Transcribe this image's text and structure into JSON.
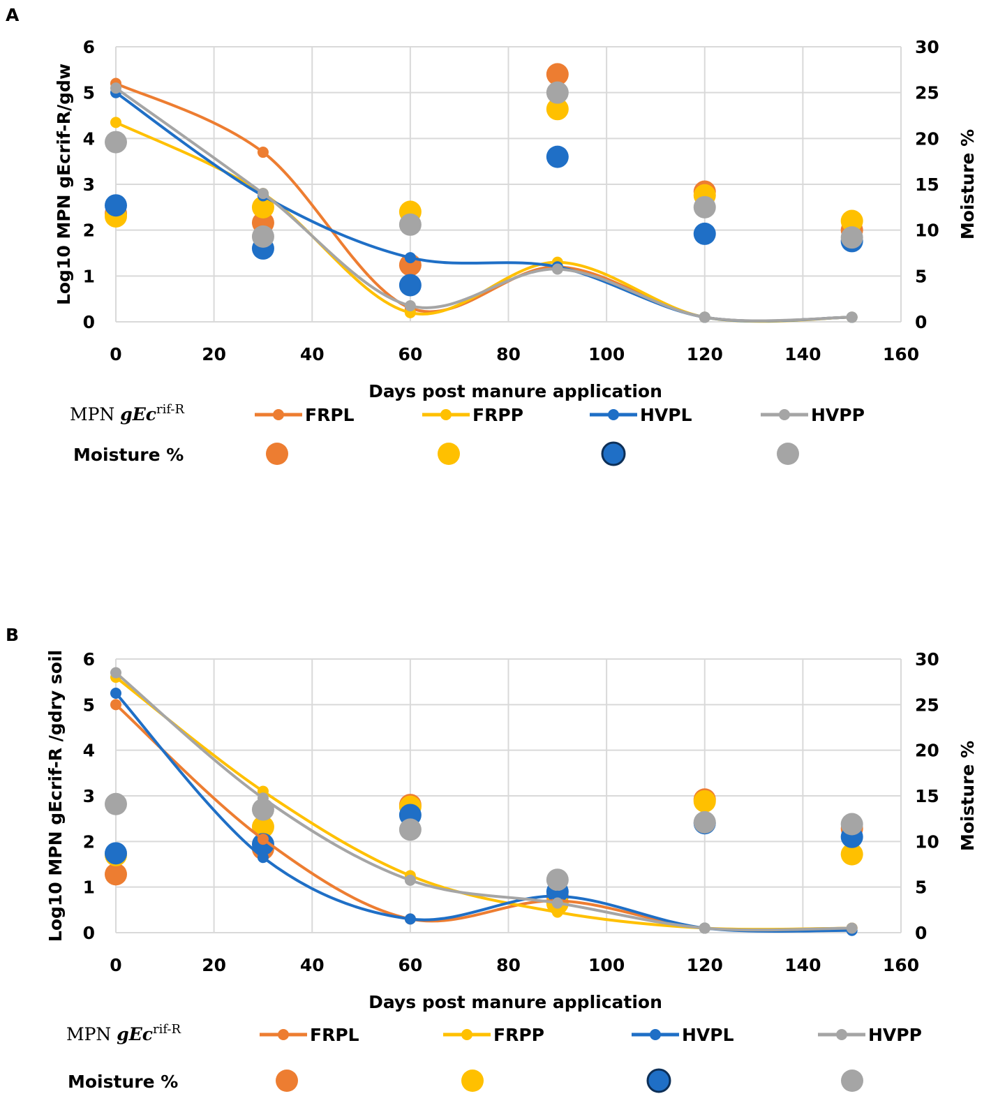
{
  "chart_data": [
    {
      "panel": "A",
      "type": "line",
      "x_label": "Days post manure application",
      "y_label": "Log10 MPN gEcrif-R/gdw",
      "y2_label": "Moisture %",
      "xlim": [
        0,
        160
      ],
      "x_ticks": [
        0,
        20,
        40,
        60,
        80,
        100,
        120,
        140,
        160
      ],
      "ylim": [
        0,
        6
      ],
      "y_ticks": [
        0,
        1,
        2,
        3,
        4,
        5,
        6
      ],
      "y2lim": [
        0,
        30
      ],
      "y2_ticks": [
        0,
        5,
        10,
        15,
        20,
        25,
        30
      ],
      "grid": true,
      "x": [
        0,
        30,
        60,
        90,
        120,
        150
      ],
      "series": [
        {
          "name": "FRPL",
          "color": "#ED7D31",
          "mpn": [
            5.2,
            3.7,
            0.3,
            1.2,
            0.1,
            0.1
          ],
          "moisture": [
            11.8,
            10.8,
            6.2,
            27.0,
            14.2,
            10.0
          ]
        },
        {
          "name": "FRPP",
          "color": "#FFC000",
          "mpn": [
            4.35,
            2.8,
            0.2,
            1.3,
            0.1,
            0.1
          ],
          "moisture": [
            11.5,
            12.5,
            12.0,
            23.2,
            13.8,
            11.0
          ]
        },
        {
          "name": "HVPL",
          "color": "#1F6FC6",
          "mpn": [
            5.0,
            2.75,
            1.4,
            1.2,
            0.1,
            0.1
          ],
          "moisture": [
            12.7,
            8.0,
            4.0,
            18.0,
            9.6,
            8.8
          ]
        },
        {
          "name": "HVPP",
          "color": "#A5A5A5",
          "mpn": [
            5.1,
            2.8,
            0.35,
            1.15,
            0.1,
            0.1
          ],
          "moisture": [
            19.6,
            9.3,
            10.6,
            25.0,
            12.5,
            9.2
          ]
        }
      ],
      "legend": {
        "line_group_label": "MPN gEc",
        "line_group_sup": "rif-R",
        "marker_group_label": "Moisture %"
      }
    },
    {
      "panel": "B",
      "type": "line",
      "x_label": "Days post manure application",
      "y_label": "Log10 MPN gEcrif-R /gdry soil",
      "y2_label": "Moisture %",
      "xlim": [
        0,
        160
      ],
      "x_ticks": [
        0,
        20,
        40,
        60,
        80,
        100,
        120,
        140,
        160
      ],
      "ylim": [
        0,
        6
      ],
      "y_ticks": [
        0,
        1,
        2,
        3,
        4,
        5,
        6
      ],
      "y2lim": [
        0,
        30
      ],
      "y2_ticks": [
        0,
        5,
        10,
        15,
        20,
        25,
        30
      ],
      "grid": true,
      "x": [
        0,
        30,
        60,
        90,
        120,
        150
      ],
      "series": [
        {
          "name": "FRPL",
          "color": "#ED7D31",
          "mpn": [
            5.0,
            2.05,
            0.3,
            0.7,
            0.1,
            0.1
          ],
          "moisture": [
            6.4,
            9.2,
            14.0,
            4.0,
            14.6,
            11.4
          ]
        },
        {
          "name": "FRPP",
          "color": "#FFC000",
          "mpn": [
            5.6,
            3.1,
            1.25,
            0.45,
            0.1,
            0.1
          ],
          "moisture": [
            8.5,
            11.6,
            13.8,
            3.2,
            14.4,
            8.6
          ]
        },
        {
          "name": "HVPL",
          "color": "#1F6FC6",
          "mpn": [
            5.25,
            1.65,
            0.3,
            0.8,
            0.1,
            0.05
          ],
          "moisture": [
            8.7,
            9.7,
            12.9,
            4.5,
            12.0,
            10.5
          ]
        },
        {
          "name": "HVPP",
          "color": "#A5A5A5",
          "mpn": [
            5.7,
            2.95,
            1.15,
            0.65,
            0.1,
            0.1
          ],
          "moisture": [
            14.1,
            13.5,
            11.3,
            5.8,
            12.1,
            11.9
          ]
        }
      ],
      "legend": {
        "line_group_label": "MPN gEc",
        "line_group_sup": "rif-R",
        "marker_group_label": "Moisture %"
      }
    }
  ]
}
